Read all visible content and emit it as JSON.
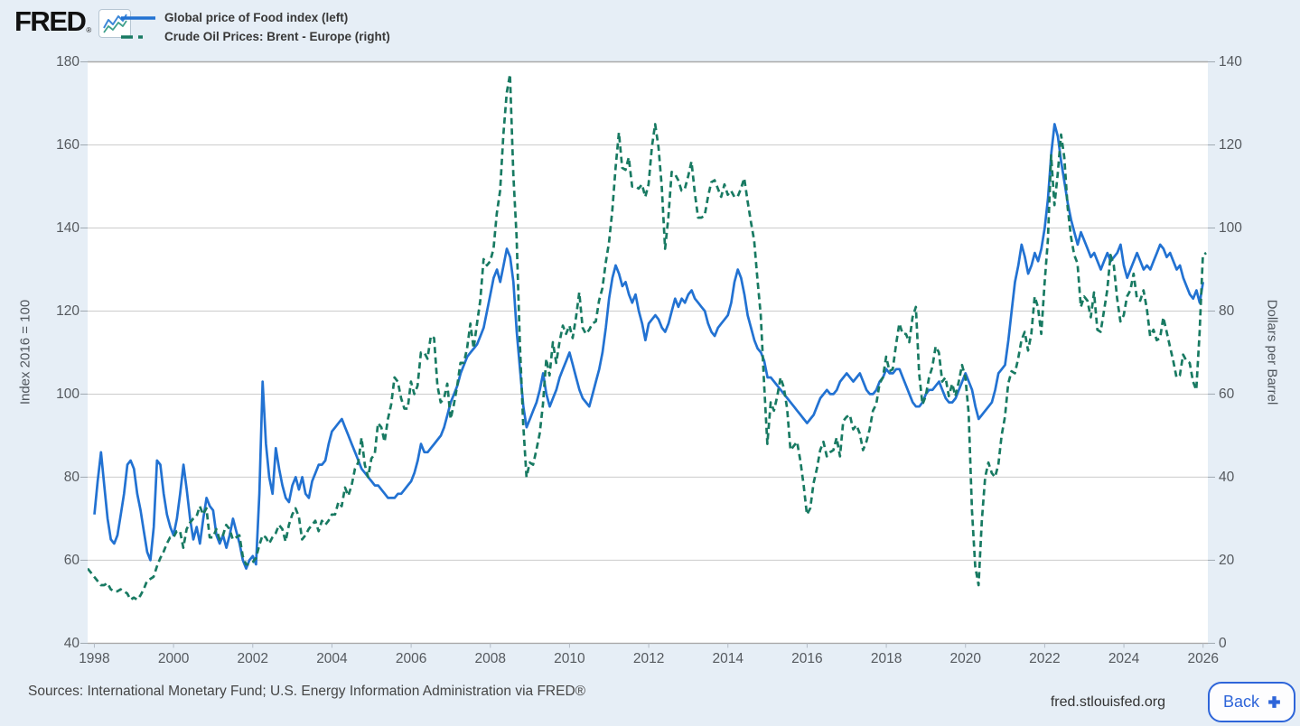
{
  "header": {
    "logo_text": "FRED",
    "logo_reg": "®",
    "legend": [
      {
        "label": "Global price of Food index (left)"
      },
      {
        "label": "Crude Oil Prices: Brent - Europe (right)"
      }
    ]
  },
  "footer": {
    "sources": "Sources: International Monetary Fund; U.S. Energy Information Administration via FRED®",
    "site": "fred.stlouisfed.org",
    "back_label": "Back"
  },
  "colors": {
    "background": "#e6eef6",
    "plot_background": "#ffffff",
    "gridline": "#cccccc",
    "axis_line": "#aaaaaa",
    "food_series_blue": "#2272d2",
    "oil_series_green": "#187a62",
    "back_button_blue": "#2e65d9",
    "tick_text": "#55595e"
  },
  "chart_data": {
    "type": "line",
    "title": "",
    "xlabel": "",
    "grid": true,
    "legend_position": "top-left",
    "x_axis": {
      "min": 1997.83,
      "max": 2026.12,
      "ticks": [
        1998,
        2000,
        2002,
        2004,
        2006,
        2008,
        2010,
        2012,
        2014,
        2016,
        2018,
        2020,
        2022,
        2024,
        2026
      ]
    },
    "y_left": {
      "title": "Index 2016 = 100",
      "min": 40,
      "max": 180,
      "ticks": [
        40,
        60,
        80,
        100,
        120,
        140,
        160,
        180
      ]
    },
    "y_right": {
      "title": "Dollars per Barrel",
      "min": 0,
      "max": 140,
      "ticks": [
        0,
        20,
        40,
        60,
        80,
        100,
        120,
        140
      ]
    },
    "series": [
      {
        "name": "Global price of Food index (left)",
        "axis": "left",
        "color": "#2272d2",
        "line_style": "solid",
        "x_start": 1998.0,
        "x_step": 0.08333,
        "values": [
          71,
          79,
          86,
          78,
          70,
          65,
          64,
          66,
          71,
          76,
          83,
          84,
          82,
          76,
          72,
          67,
          62,
          60,
          68,
          84,
          83,
          76,
          71,
          68,
          66,
          70,
          76,
          83,
          77,
          70,
          65,
          68,
          64,
          70,
          75,
          73,
          72,
          66,
          64,
          66,
          63,
          66,
          70,
          67,
          64,
          60,
          58,
          60,
          61,
          59,
          76,
          103,
          88,
          80,
          76,
          87,
          82,
          78,
          75,
          74,
          78,
          80,
          77,
          80,
          76,
          75,
          79,
          81,
          83,
          83,
          84,
          88,
          91,
          92,
          93,
          94,
          92,
          90,
          88,
          86,
          84,
          82,
          81,
          80,
          79,
          78,
          78,
          77,
          76,
          75,
          75,
          75,
          76,
          76,
          77,
          78,
          79,
          81,
          84,
          88,
          86,
          86,
          87,
          88,
          89,
          90,
          92,
          95,
          98,
          100,
          102,
          105,
          107,
          109,
          110,
          111,
          112,
          114,
          116,
          120,
          124,
          128,
          130,
          127,
          131,
          135,
          133,
          127,
          115,
          106,
          97,
          92,
          94,
          96,
          98,
          101,
          105,
          100,
          97,
          99,
          101,
          104,
          106,
          108,
          110,
          107,
          104,
          101,
          99,
          98,
          97,
          100,
          103,
          106,
          110,
          116,
          123,
          128,
          131,
          129,
          126,
          127,
          124,
          122,
          124,
          120,
          117,
          113,
          117,
          118,
          119,
          118,
          116,
          115,
          117,
          120,
          123,
          121,
          123,
          122,
          124,
          125,
          123,
          122,
          121,
          120,
          117,
          115,
          114,
          116,
          117,
          118,
          119,
          122,
          127,
          130,
          128,
          124,
          119,
          116,
          113,
          111,
          110,
          108,
          104,
          104,
          103,
          102,
          101,
          100,
          99,
          98,
          97,
          96,
          95,
          94,
          93,
          94,
          95,
          97,
          99,
          100,
          101,
          100,
          100,
          101,
          103,
          104,
          105,
          104,
          103,
          104,
          105,
          103,
          101,
          100,
          100,
          101,
          103,
          104,
          106,
          105,
          105,
          106,
          106,
          104,
          102,
          100,
          98,
          97,
          97,
          98,
          100,
          101,
          101,
          102,
          103,
          101,
          99,
          98,
          98,
          99,
          101,
          103,
          105,
          103,
          101,
          97,
          94,
          95,
          96,
          97,
          98,
          101,
          105,
          106,
          107,
          113,
          120,
          127,
          131,
          136,
          133,
          129,
          131,
          134,
          132,
          135,
          140,
          147,
          158,
          165,
          162,
          156,
          151,
          146,
          142,
          139,
          136,
          139,
          137,
          135,
          133,
          134,
          132,
          130,
          132,
          134,
          132,
          133,
          134,
          136,
          131,
          128,
          130,
          132,
          134,
          132,
          130,
          131,
          130,
          132,
          134,
          136,
          135,
          133,
          134,
          132,
          130,
          131,
          128,
          126,
          124,
          123,
          125,
          122,
          127
        ]
      },
      {
        "name": "Crude Oil Prices: Brent - Europe (right)",
        "axis": "right",
        "color": "#187a62",
        "line_style": "dashed",
        "x_start": 1997.83,
        "x_step": 0.08333,
        "values": [
          18,
          17,
          16,
          15,
          14,
          14,
          14.5,
          13,
          12.5,
          12.5,
          13,
          12.5,
          12,
          10.5,
          11,
          10.5,
          11.5,
          13,
          15,
          15.5,
          16,
          18.5,
          20.5,
          22,
          24,
          25.5,
          25.5,
          27,
          27,
          23,
          27.5,
          29,
          30,
          30.5,
          33,
          31,
          32.5,
          25.5,
          25.5,
          27.5,
          25,
          26,
          28.5,
          27.5,
          25,
          25.5,
          26,
          21,
          19,
          19,
          19.5,
          20.5,
          23.5,
          26,
          25.5,
          24,
          25.5,
          26.5,
          28.5,
          27.5,
          24.5,
          28.5,
          31,
          32.5,
          30.5,
          25,
          26,
          27.5,
          28.5,
          29.5,
          27,
          29.5,
          28.5,
          29.5,
          31,
          31,
          34,
          33,
          37.5,
          35.5,
          38,
          42,
          43.5,
          49.5,
          43,
          40,
          44.5,
          45.5,
          53,
          52,
          48.5,
          54,
          57.5,
          64,
          63,
          59,
          56.5,
          56.5,
          63,
          60,
          62,
          70,
          70,
          68.5,
          74,
          73.5,
          62,
          58,
          59,
          62.5,
          54,
          57.5,
          62,
          67.5,
          67.5,
          71,
          77,
          71,
          77,
          82.5,
          92.5,
          91,
          92,
          95,
          103.5,
          109,
          122.5,
          132.5,
          137,
          113,
          98,
          72,
          53,
          40,
          43.5,
          43,
          46.5,
          50.5,
          57.5,
          68.5,
          64.5,
          72.5,
          67.5,
          72.5,
          76.5,
          74.5,
          76.5,
          73.5,
          78.5,
          84.5,
          76,
          74.5,
          75.5,
          77,
          77.5,
          82.5,
          85.5,
          91.5,
          96.5,
          104,
          114.5,
          123,
          114.5,
          114,
          117,
          110,
          110,
          109.5,
          110.5,
          107.5,
          110.5,
          119.5,
          125,
          119.5,
          110,
          95,
          102.5,
          113.5,
          113,
          111.5,
          109,
          109.5,
          112.5,
          116,
          108.5,
          102.5,
          102.5,
          103,
          107.5,
          111,
          111.5,
          109.5,
          107.5,
          110.5,
          108,
          109,
          107.5,
          107.5,
          109.5,
          112,
          106.5,
          101.5,
          97,
          87.5,
          79,
          62.5,
          48,
          58,
          56,
          59.5,
          64,
          61.5,
          56.5,
          46.5,
          47.5,
          48.5,
          44,
          38,
          31,
          32.5,
          38.5,
          42,
          46.5,
          48.5,
          45,
          46,
          46.5,
          49.5,
          45,
          53.5,
          54.5,
          55,
          51.5,
          52.5,
          50.5,
          46.5,
          48.5,
          51.5,
          56,
          57.5,
          62.5,
          64,
          69,
          65.5,
          66,
          72,
          77,
          74.5,
          74.5,
          72.5,
          78.5,
          81,
          65,
          57.5,
          59.5,
          64,
          66.5,
          71.5,
          70,
          63,
          64,
          59.5,
          62.5,
          59.5,
          63,
          67,
          64,
          55.5,
          32,
          18.5,
          14,
          29.5,
          40,
          43.5,
          41,
          40,
          43,
          50,
          54.5,
          62.5,
          65.5,
          65,
          68.5,
          73,
          75,
          70.5,
          74.5,
          83.5,
          81,
          74.5,
          86.5,
          97,
          117.5,
          105.5,
          113,
          122.5,
          117,
          105,
          98,
          93.5,
          91.5,
          81,
          83.5,
          82.5,
          78.5,
          84.5,
          75.5,
          75,
          80,
          85,
          93.5,
          91,
          83,
          77.5,
          79,
          83.5,
          85,
          89,
          83,
          82.5,
          85,
          80.5,
          74,
          75.5,
          73,
          73.5,
          78.5,
          75,
          71.5,
          68,
          64,
          64.5,
          69.5,
          68,
          67.5,
          63,
          61,
          75,
          93.5,
          94
        ]
      }
    ]
  }
}
